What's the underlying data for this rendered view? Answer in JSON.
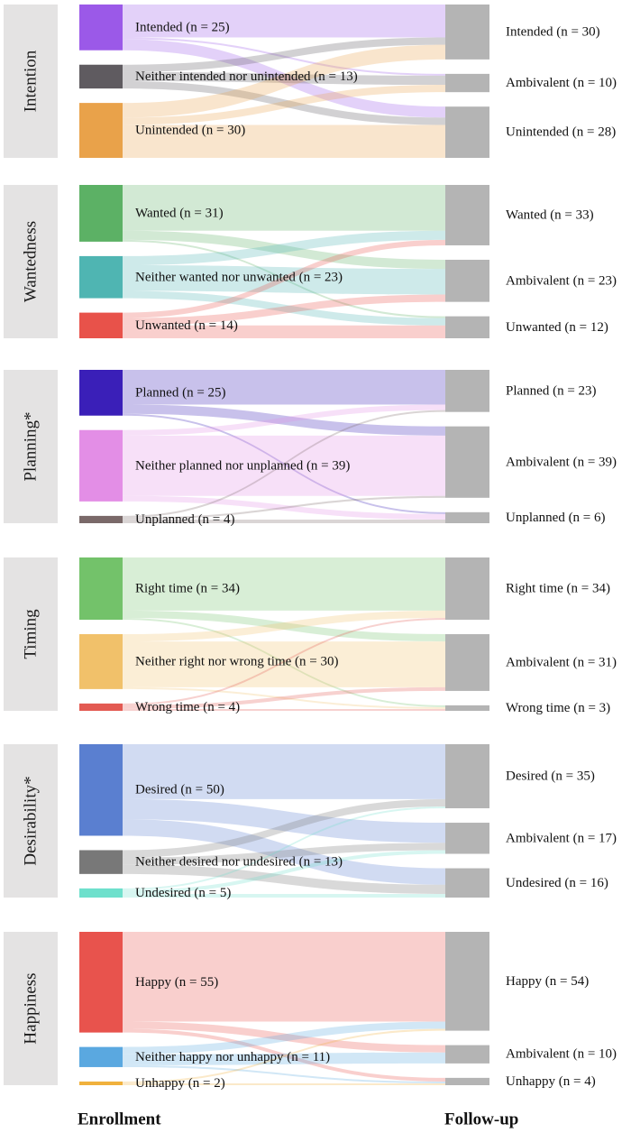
{
  "chart_data": {
    "type": "sankey",
    "footer": {
      "left": "Enrollment",
      "right": "Follow-up"
    },
    "panels": [
      {
        "title": "Intention",
        "enrollment": [
          {
            "name": "Intended",
            "n": 25,
            "color": "#9b59e8"
          },
          {
            "name": "Neither intended nor unintended",
            "n": 13,
            "color": "#5f5b60"
          },
          {
            "name": "Unintended",
            "n": 30,
            "color": "#e9a24a"
          }
        ],
        "followup": [
          {
            "name": "Intended",
            "n": 30
          },
          {
            "name": "Ambivalent",
            "n": 10
          },
          {
            "name": "Unintended",
            "n": 28
          }
        ],
        "flows": [
          [
            18,
            1,
            6
          ],
          [
            4,
            5,
            4
          ],
          [
            8,
            4,
            18
          ]
        ]
      },
      {
        "title": "Wantedness",
        "enrollment": [
          {
            "name": "Wanted",
            "n": 31,
            "color": "#5cb165"
          },
          {
            "name": "Neither wanted nor unwanted",
            "n": 23,
            "color": "#4fb5b2"
          },
          {
            "name": "Unwanted",
            "n": 14,
            "color": "#e8524a"
          }
        ],
        "followup": [
          {
            "name": "Wanted",
            "n": 33
          },
          {
            "name": "Ambivalent",
            "n": 23
          },
          {
            "name": "Unwanted",
            "n": 12
          }
        ],
        "flows": [
          [
            25,
            5,
            1
          ],
          [
            5,
            14,
            4
          ],
          [
            3,
            4,
            7
          ]
        ]
      },
      {
        "title": "Planning*",
        "enrollment": [
          {
            "name": "Planned",
            "n": 25,
            "color": "#3a1fb8"
          },
          {
            "name": "Neither planned nor unplanned",
            "n": 39,
            "color": "#e38ee6"
          },
          {
            "name": "Unplanned",
            "n": 4,
            "color": "#7a6969"
          }
        ],
        "followup": [
          {
            "name": "Planned",
            "n": 23
          },
          {
            "name": "Ambivalent",
            "n": 39
          },
          {
            "name": "Unplanned",
            "n": 6
          }
        ],
        "flows": [
          [
            19,
            5,
            1
          ],
          [
            3,
            33,
            3
          ],
          [
            1,
            1,
            2
          ]
        ]
      },
      {
        "title": "Timing",
        "enrollment": [
          {
            "name": "Right time",
            "n": 34,
            "color": "#73c26a"
          },
          {
            "name": "Neither right nor wrong time",
            "n": 30,
            "color": "#f1c16a"
          },
          {
            "name": "Wrong time",
            "n": 4,
            "color": "#e35a52"
          }
        ],
        "followup": [
          {
            "name": "Right time",
            "n": 34
          },
          {
            "name": "Ambivalent",
            "n": 31
          },
          {
            "name": "Wrong time",
            "n": 3
          }
        ],
        "flows": [
          [
            29,
            4,
            1
          ],
          [
            4,
            25,
            1
          ],
          [
            1,
            2,
            1
          ]
        ]
      },
      {
        "title": "Desirability*",
        "enrollment": [
          {
            "name": "Desired",
            "n": 50,
            "color": "#5a7fd0"
          },
          {
            "name": "Neither desired nor undesired",
            "n": 13,
            "color": "#787878"
          },
          {
            "name": "Undesired",
            "n": 5,
            "color": "#6ee0cc"
          }
        ],
        "followup": [
          {
            "name": "Desired",
            "n": 35
          },
          {
            "name": "Ambivalent",
            "n": 17
          },
          {
            "name": "Undesired",
            "n": 16
          }
        ],
        "flows": [
          [
            30,
            11,
            9
          ],
          [
            4,
            4,
            5
          ],
          [
            1,
            2,
            2
          ]
        ]
      },
      {
        "title": "Happiness",
        "enrollment": [
          {
            "name": "Happy",
            "n": 55,
            "color": "#e8534d"
          },
          {
            "name": "Neither happy nor unhappy",
            "n": 11,
            "color": "#5aa8e0"
          },
          {
            "name": "Unhappy",
            "n": 2,
            "color": "#f0b13c"
          }
        ],
        "followup": [
          {
            "name": "Happy",
            "n": 54
          },
          {
            "name": "Ambivalent",
            "n": 10
          },
          {
            "name": "Unhappy",
            "n": 4
          }
        ],
        "flows": [
          [
            49,
            4,
            2
          ],
          [
            4,
            6,
            1
          ],
          [
            1,
            0,
            1
          ]
        ]
      }
    ]
  }
}
